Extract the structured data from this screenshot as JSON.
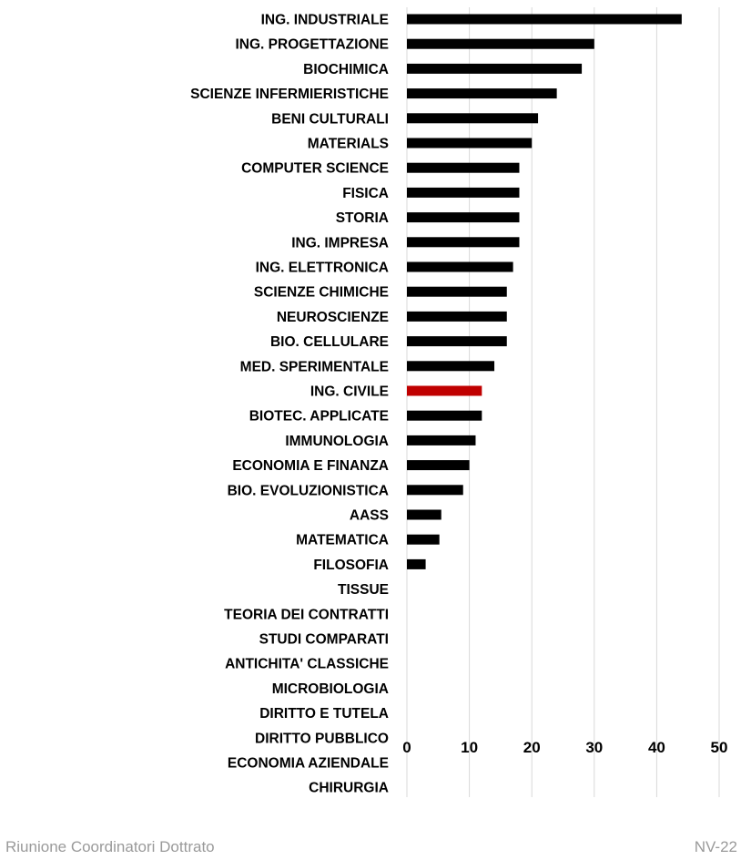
{
  "chart_data": {
    "type": "bar",
    "orientation": "horizontal",
    "categories": [
      "ING. INDUSTRIALE",
      "ING. PROGETTAZIONE",
      "BIOCHIMICA",
      "SCIENZE INFERMIERISTICHE",
      "BENI CULTURALI",
      "MATERIALS",
      "COMPUTER SCIENCE",
      "FISICA",
      "STORIA",
      "ING. IMPRESA",
      "ING. ELETTRONICA",
      "SCIENZE CHIMICHE",
      "NEUROSCIENZE",
      "BIO. CELLULARE",
      "MED. SPERIMENTALE",
      "ING. CIVILE",
      "BIOTEC. APPLICATE",
      "IMMUNOLOGIA",
      "ECONOMIA E FINANZA",
      "BIO. EVOLUZIONISTICA",
      "AASS",
      "MATEMATICA",
      "FILOSOFIA",
      "TISSUE",
      "TEORIA DEI CONTRATTI",
      "STUDI COMPARATI",
      "ANTICHITA' CLASSICHE",
      "MICROBIOLOGIA",
      "DIRITTO E TUTELA",
      "DIRITTO PUBBLICO",
      "ECONOMIA AZIENDALE",
      "CHIRURGIA"
    ],
    "values": [
      44,
      30,
      28,
      24,
      21,
      20,
      18,
      18,
      18,
      18,
      17,
      16,
      16,
      16,
      14,
      12,
      12,
      11,
      10,
      9,
      5.5,
      5.2,
      3,
      0,
      0,
      0,
      0,
      0,
      0,
      0,
      0,
      0
    ],
    "highlight": "ING. CIVILE",
    "colors": {
      "bar": "#000000",
      "highlight": "#c00000",
      "grid": "#d9d9d9"
    },
    "xlim": [
      0,
      50
    ],
    "xticks": [
      0,
      10,
      20,
      30,
      40,
      50
    ],
    "grid": true,
    "title": "",
    "xlabel": "",
    "ylabel": ""
  },
  "footer": {
    "left": "Riunione Coordinatori Dottrato",
    "right": "NV-22"
  }
}
